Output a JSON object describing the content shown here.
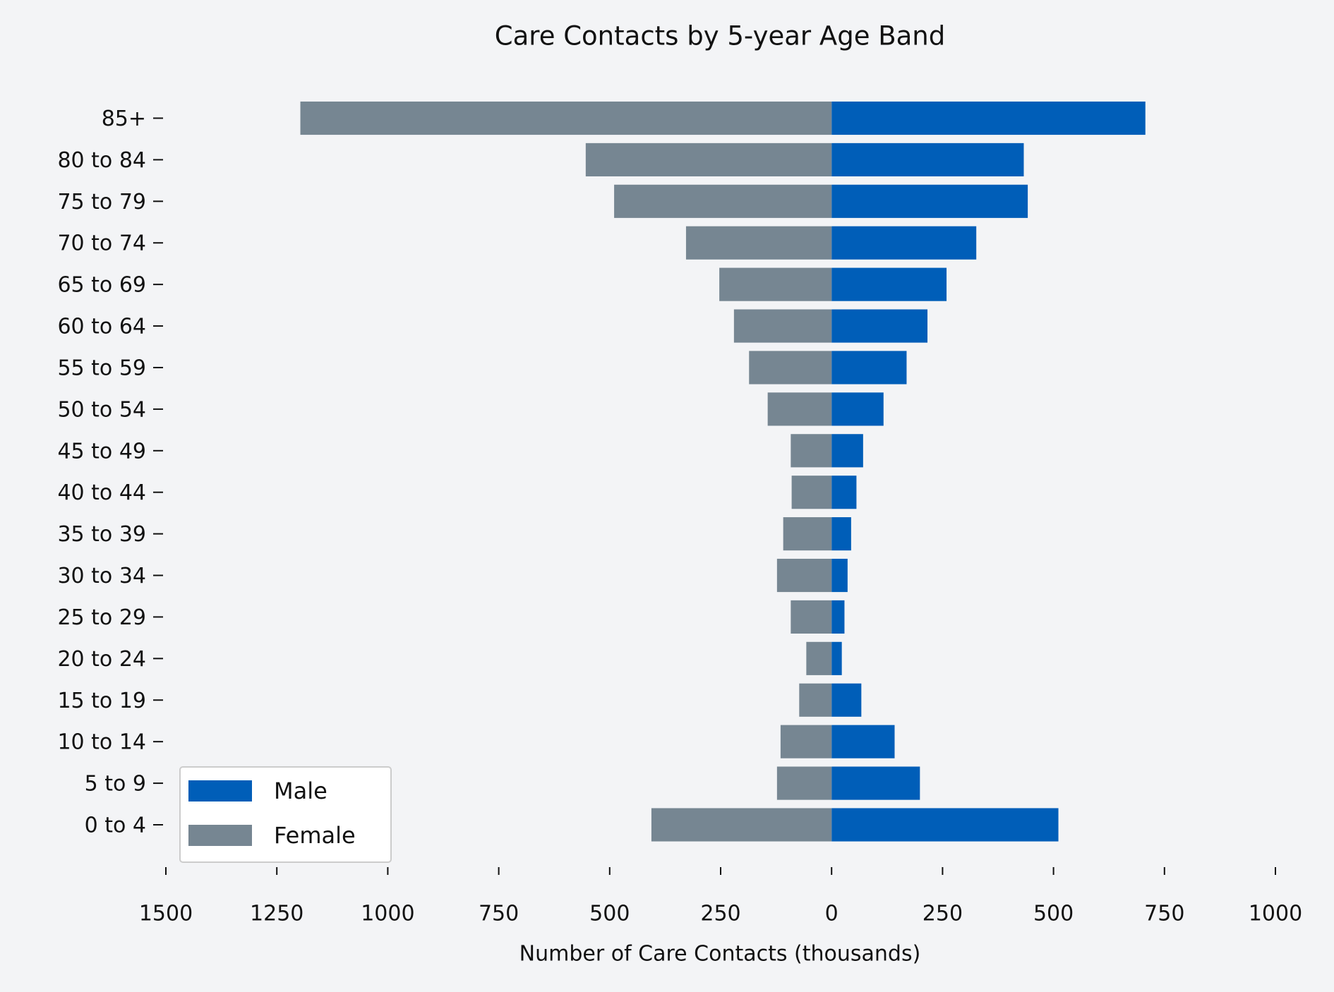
{
  "chart_data": {
    "type": "bar",
    "orientation": "horizontal",
    "title": "Care Contacts by 5-year Age Band",
    "x_label": "Number of Care Contacts (thousands)",
    "categories": [
      "0 to 4",
      "5 to 9",
      "10 to 14",
      "15 to 19",
      "20 to 24",
      "25 to 29",
      "30 to 34",
      "35 to 39",
      "40 to 44",
      "45 to 49",
      "50 to 54",
      "55 to 59",
      "60 to 64",
      "65 to 69",
      "70 to 74",
      "75 to 79",
      "80 to 84",
      "85+"
    ],
    "series": [
      {
        "name": "Male",
        "color": "#005eb8",
        "values": [
          511,
          199,
          142,
          67,
          23,
          29,
          36,
          44,
          56,
          71,
          117,
          169,
          216,
          259,
          326,
          442,
          433,
          707
        ]
      },
      {
        "name": "Female",
        "color": "#768692",
        "values": [
          -406,
          -123,
          -115,
          -73,
          -57,
          -92,
          -123,
          -109,
          -90,
          -92,
          -144,
          -186,
          -220,
          -253,
          -328,
          -490,
          -554,
          -1197
        ]
      }
    ],
    "xlim": [
      -1500,
      1000
    ],
    "xticks": [
      {
        "value": -1500,
        "label": "1500"
      },
      {
        "value": -1250,
        "label": "1250"
      },
      {
        "value": -1000,
        "label": "1000"
      },
      {
        "value": -750,
        "label": "750"
      },
      {
        "value": -500,
        "label": "500"
      },
      {
        "value": -250,
        "label": "250"
      },
      0,
      250,
      500,
      750,
      1000
    ],
    "stacked": true,
    "grid": false,
    "legend": "lower left"
  }
}
